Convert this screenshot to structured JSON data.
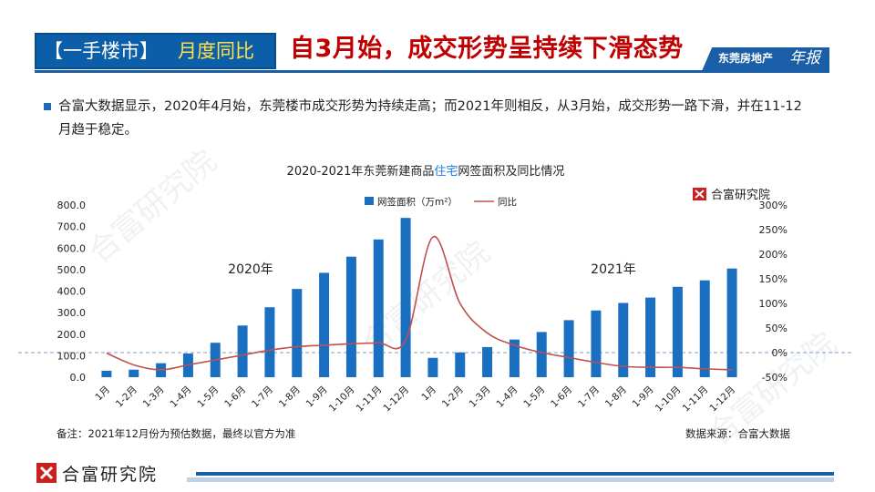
{
  "header": {
    "tag": "【一手楼市】",
    "subtag": "月度同比",
    "title": "自3月始，成交形势呈持续下滑态势",
    "badge": "东莞房地产",
    "badge_script": "年报"
  },
  "summary": "合富大数据显示，2020年4月始，东莞楼市成交形势为持续走高；而2021年则相反，从3月始，成交形势一路下滑，并在11-12月趋于稳定。",
  "logo": {
    "name": "合富研究院"
  },
  "note": "备注：2021年12月份为预估数据，最终以官方为准",
  "source": "数据来源：合富大数据",
  "colors": {
    "bar": "#1b6fc0",
    "line": "#c0504d",
    "brand": "#0d5ea8",
    "title_red": "#c00000",
    "highlight": "#1a7be0"
  },
  "chart_data": {
    "type": "bar",
    "title_pre": "2020-2021年东莞新建商品",
    "title_hl": "住宅",
    "title_post": "网签面积及同比情况",
    "categories": [
      "1月",
      "1-2月",
      "1-3月",
      "1-4月",
      "1-5月",
      "1-6月",
      "1-7月",
      "1-8月",
      "1-9月",
      "1-10月",
      "1-11月",
      "1-12月",
      "1月",
      "1-2月",
      "1-3月",
      "1-4月",
      "1-5月",
      "1-6月",
      "1-7月",
      "1-8月",
      "1-9月",
      "1-10月",
      "1-11月",
      "1-12月"
    ],
    "year_labels": [
      "2020年",
      "2021年"
    ],
    "series": [
      {
        "name": "网签面积（万m²）",
        "type": "bar",
        "axis": "left",
        "values": [
          30,
          35,
          65,
          110,
          160,
          240,
          325,
          410,
          485,
          560,
          640,
          740,
          90,
          115,
          140,
          175,
          210,
          265,
          310,
          345,
          370,
          420,
          450,
          505
        ]
      },
      {
        "name": "同比",
        "type": "line",
        "axis": "right",
        "values": [
          -1,
          -25,
          -35,
          -25,
          -15,
          -5,
          5,
          12,
          15,
          18,
          20,
          25,
          235,
          100,
          40,
          15,
          0,
          -10,
          -20,
          -28,
          -30,
          -30,
          -33,
          -35
        ]
      }
    ],
    "ylim_left": [
      0,
      800
    ],
    "yticks_left": [
      "0.0",
      "100.0",
      "200.0",
      "300.0",
      "400.0",
      "500.0",
      "600.0",
      "700.0",
      "800.0"
    ],
    "ylim_right": [
      -50,
      300
    ],
    "yticks_right": [
      "-50%",
      "0%",
      "50%",
      "100%",
      "150%",
      "200%",
      "250%",
      "300%"
    ],
    "legend": "top-center",
    "grid": false
  }
}
